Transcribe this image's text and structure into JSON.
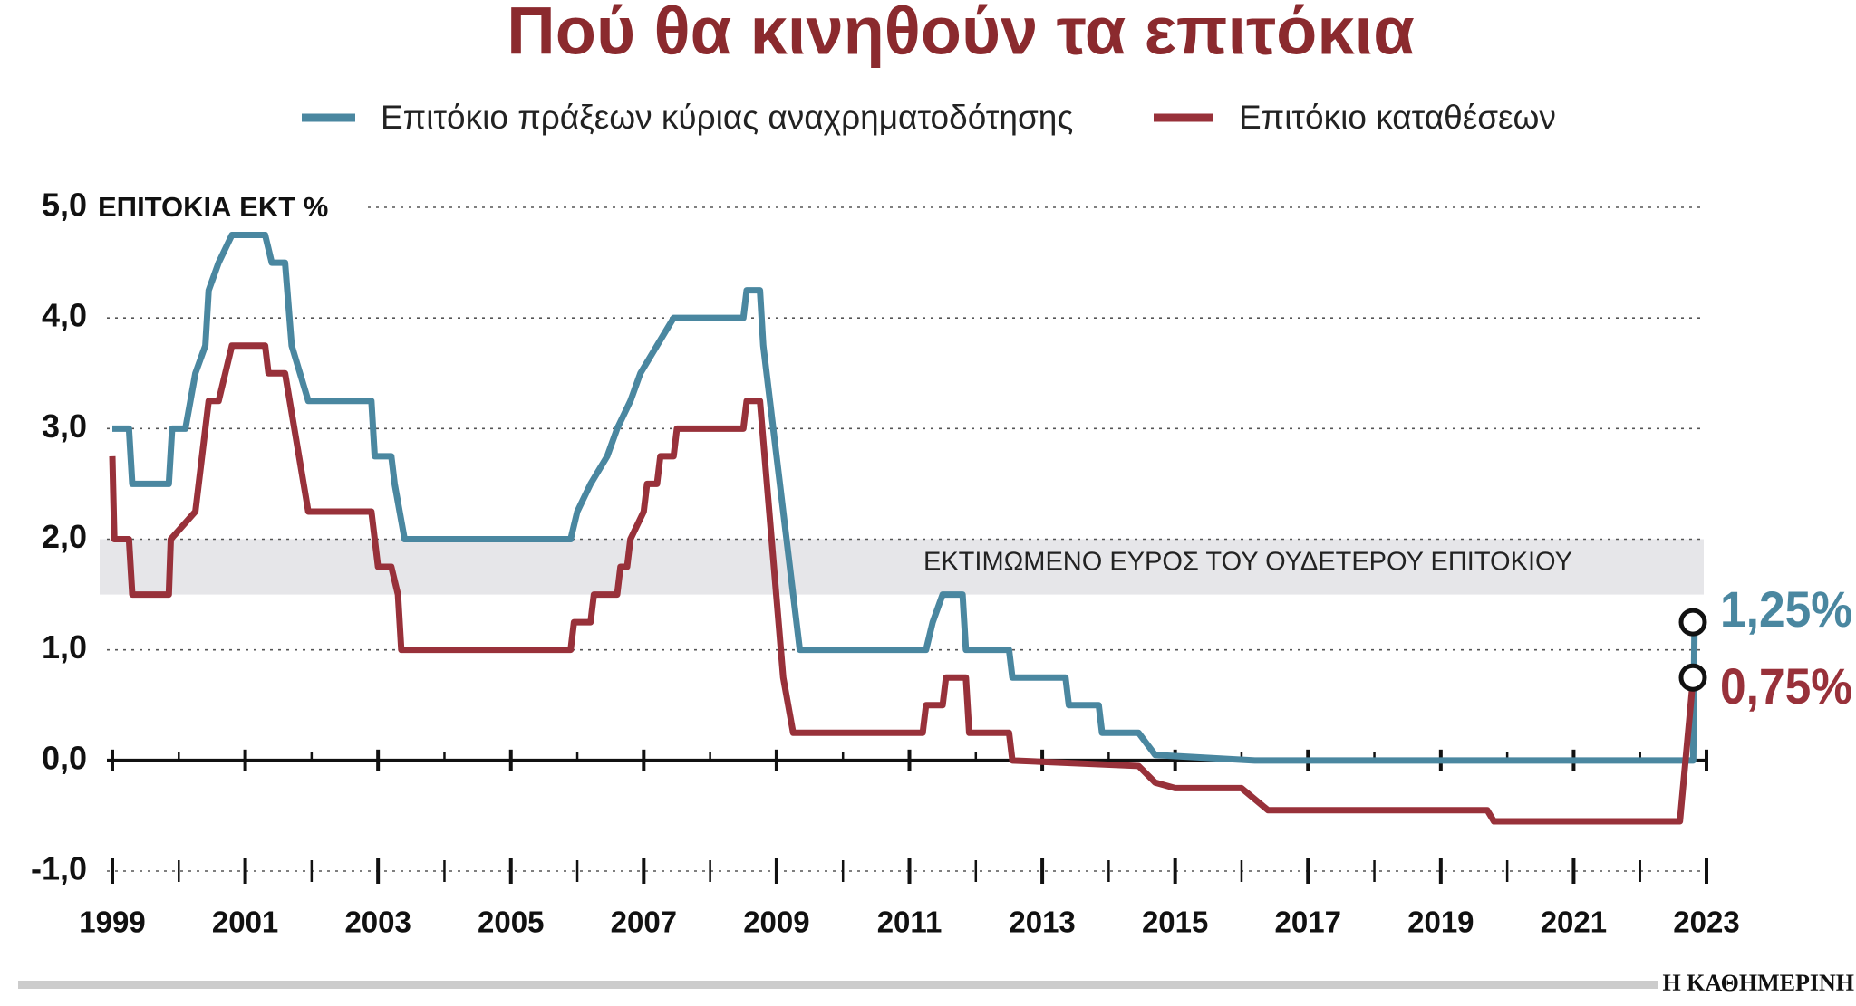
{
  "chart_data": {
    "type": "line",
    "title": "Πού θα κινηθούν τα επιτόκια",
    "y_label": "ΕΠΙΤΟΚΙΑ ΕΚΤ %",
    "annotation": "ΕΚΤΙΜΩΜΕΝΟ ΕΥΡΟΣ ΤΟΥ ΟΥΔΕΤΕΡΟΥ ΕΠΙΤΟΚΙΟΥ",
    "neutral_band": [
      1.5,
      2.0
    ],
    "source": "Η ΚΑΘΗΜΕΡΙΝΗ",
    "xlim": [
      1999,
      2023
    ],
    "xticks": [
      1999,
      2001,
      2003,
      2005,
      2007,
      2009,
      2011,
      2013,
      2015,
      2017,
      2019,
      2021,
      2023
    ],
    "xminorticks": [
      2000,
      2002,
      2004,
      2006,
      2008,
      2010,
      2012,
      2014,
      2016,
      2018,
      2020,
      2022
    ],
    "ylim": [
      -1,
      5
    ],
    "yticks": [
      {
        "value": -1,
        "label": "-1,0"
      },
      {
        "value": 0,
        "label": "0,0"
      },
      {
        "value": 1,
        "label": "1,0"
      },
      {
        "value": 2,
        "label": "2,0"
      },
      {
        "value": 3,
        "label": "3,0"
      },
      {
        "value": 4,
        "label": "4,0"
      },
      {
        "value": 5,
        "label": "5,0"
      }
    ],
    "grid": true,
    "series": [
      {
        "name": "Επιτόκιο πράξεων κύριας αναχρηματοδότησης",
        "color": "#4a87a0",
        "x": [
          1999.0,
          1999.25,
          1999.3,
          1999.85,
          1999.9,
          2000.1,
          2000.25,
          2000.4,
          2000.45,
          2000.6,
          2000.8,
          2001.3,
          2001.4,
          2001.6,
          2001.7,
          2001.95,
          2002.9,
          2002.95,
          2003.2,
          2003.25,
          2003.4,
          2005.9,
          2006.0,
          2006.2,
          2006.45,
          2006.6,
          2006.8,
          2006.95,
          2007.2,
          2007.45,
          2008.5,
          2008.55,
          2008.75,
          2008.8,
          2009.35,
          2011.25,
          2011.35,
          2011.5,
          2011.8,
          2011.85,
          2012.5,
          2012.55,
          2013.35,
          2013.4,
          2013.85,
          2013.9,
          2014.45,
          2014.7,
          2016.2,
          2022.8,
          2022.82
        ],
        "values": [
          3.0,
          3.0,
          2.5,
          2.5,
          3.0,
          3.0,
          3.5,
          3.75,
          4.25,
          4.5,
          4.75,
          4.75,
          4.5,
          4.5,
          3.75,
          3.25,
          3.25,
          2.75,
          2.75,
          2.5,
          2.0,
          2.0,
          2.25,
          2.5,
          2.75,
          3.0,
          3.25,
          3.5,
          3.75,
          4.0,
          4.0,
          4.25,
          4.25,
          3.75,
          1.0,
          1.0,
          1.25,
          1.5,
          1.5,
          1.0,
          1.0,
          0.75,
          0.75,
          0.5,
          0.5,
          0.25,
          0.25,
          0.05,
          0.0,
          0.0,
          1.25
        ],
        "end_label": {
          "value": 1.25,
          "label": "1,25%"
        }
      },
      {
        "name": "Επιτόκιο καταθέσεων",
        "color": "#98313a",
        "x": [
          1999.0,
          1999.03,
          1999.25,
          1999.3,
          1999.85,
          1999.88,
          2000.25,
          2000.45,
          2000.6,
          2000.8,
          2001.3,
          2001.35,
          2001.6,
          2001.95,
          2002.9,
          2003.0,
          2003.2,
          2003.3,
          2003.35,
          2005.9,
          2005.95,
          2006.2,
          2006.25,
          2006.6,
          2006.65,
          2006.75,
          2006.8,
          2007.0,
          2007.05,
          2007.2,
          2007.25,
          2007.45,
          2007.5,
          2008.5,
          2008.55,
          2008.75,
          2009.1,
          2009.25,
          2011.2,
          2011.25,
          2011.5,
          2011.55,
          2011.85,
          2011.9,
          2012.5,
          2012.55,
          2014.45,
          2014.7,
          2015.0,
          2016.0,
          2016.4,
          2019.7,
          2019.8,
          2022.6,
          2022.8
        ],
        "values": [
          2.75,
          2.0,
          2.0,
          1.5,
          1.5,
          2.0,
          2.25,
          3.25,
          3.25,
          3.75,
          3.75,
          3.5,
          3.5,
          2.25,
          2.25,
          1.75,
          1.75,
          1.5,
          1.0,
          1.0,
          1.25,
          1.25,
          1.5,
          1.5,
          1.75,
          1.75,
          2.0,
          2.25,
          2.5,
          2.5,
          2.75,
          2.75,
          3.0,
          3.0,
          3.25,
          3.25,
          0.75,
          0.25,
          0.25,
          0.5,
          0.5,
          0.75,
          0.75,
          0.25,
          0.25,
          0.0,
          -0.05,
          -0.2,
          -0.25,
          -0.25,
          -0.45,
          -0.45,
          -0.55,
          -0.55,
          0.75
        ],
        "end_label": {
          "value": 0.75,
          "label": "0,75%"
        }
      }
    ]
  }
}
